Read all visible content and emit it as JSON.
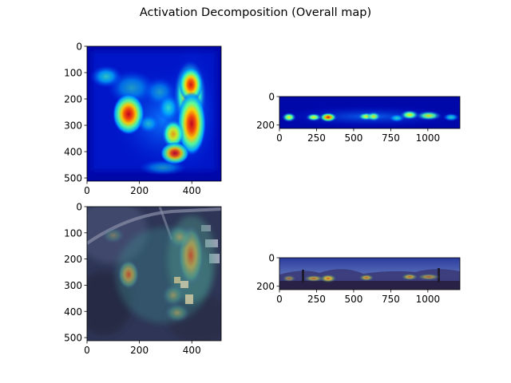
{
  "figure": {
    "title": "Activation Decomposition (Overall map)"
  },
  "chart_data": [
    {
      "type": "heatmap",
      "name": "overall-activation-aerial",
      "colormap": "jet",
      "xlim": [
        0,
        512
      ],
      "ylim": [
        512,
        0
      ],
      "xticks": [
        "0",
        "200",
        "400"
      ],
      "yticks": [
        "0",
        "100",
        "200",
        "300",
        "400",
        "500"
      ],
      "xtick_values": [
        0,
        200,
        400
      ],
      "ytick_values": [
        0,
        100,
        200,
        300,
        400,
        500
      ],
      "hotspots": [
        {
          "x": 390,
          "y": 200,
          "value": 1.0
        },
        {
          "x": 360,
          "y": 120,
          "value": 0.85
        },
        {
          "x": 160,
          "y": 260,
          "value": 0.8
        },
        {
          "x": 330,
          "y": 320,
          "value": 0.7
        },
        {
          "x": 340,
          "y": 420,
          "value": 0.75
        },
        {
          "x": 60,
          "y": 140,
          "value": 0.45
        }
      ]
    },
    {
      "type": "heatmap",
      "name": "overall-activation-panorama",
      "colormap": "jet",
      "xlim": [
        0,
        1216
      ],
      "ylim": [
        224,
        0
      ],
      "xticks": [
        "0",
        "250",
        "500",
        "750",
        "1000"
      ],
      "yticks": [
        "0",
        "200"
      ],
      "xtick_values": [
        0,
        250,
        500,
        750,
        1000
      ],
      "ytick_values": [
        0,
        200
      ],
      "hotspots": [
        {
          "x": 340,
          "y": 140,
          "value": 1.0
        },
        {
          "x": 590,
          "y": 135,
          "value": 0.7
        },
        {
          "x": 880,
          "y": 120,
          "value": 0.75
        },
        {
          "x": 230,
          "y": 140,
          "value": 0.55
        },
        {
          "x": 60,
          "y": 145,
          "value": 0.5
        },
        {
          "x": 1020,
          "y": 125,
          "value": 0.5
        }
      ]
    },
    {
      "type": "heatmap",
      "name": "overlay-aerial",
      "colormap": "jet",
      "xlim": [
        0,
        512
      ],
      "ylim": [
        512,
        0
      ],
      "xticks": [
        "0",
        "200",
        "400"
      ],
      "yticks": [
        "0",
        "100",
        "200",
        "300",
        "400",
        "500"
      ],
      "xtick_values": [
        0,
        200,
        400
      ],
      "ytick_values": [
        0,
        100,
        200,
        300,
        400,
        500
      ]
    },
    {
      "type": "heatmap",
      "name": "overlay-panorama",
      "colormap": "jet",
      "xlim": [
        0,
        1216
      ],
      "ylim": [
        224,
        0
      ],
      "xticks": [
        "0",
        "250",
        "500",
        "750",
        "1000"
      ],
      "yticks": [
        "0",
        "200"
      ],
      "xtick_values": [
        0,
        250,
        500,
        750,
        1000
      ],
      "ytick_values": [
        0,
        200
      ]
    }
  ]
}
